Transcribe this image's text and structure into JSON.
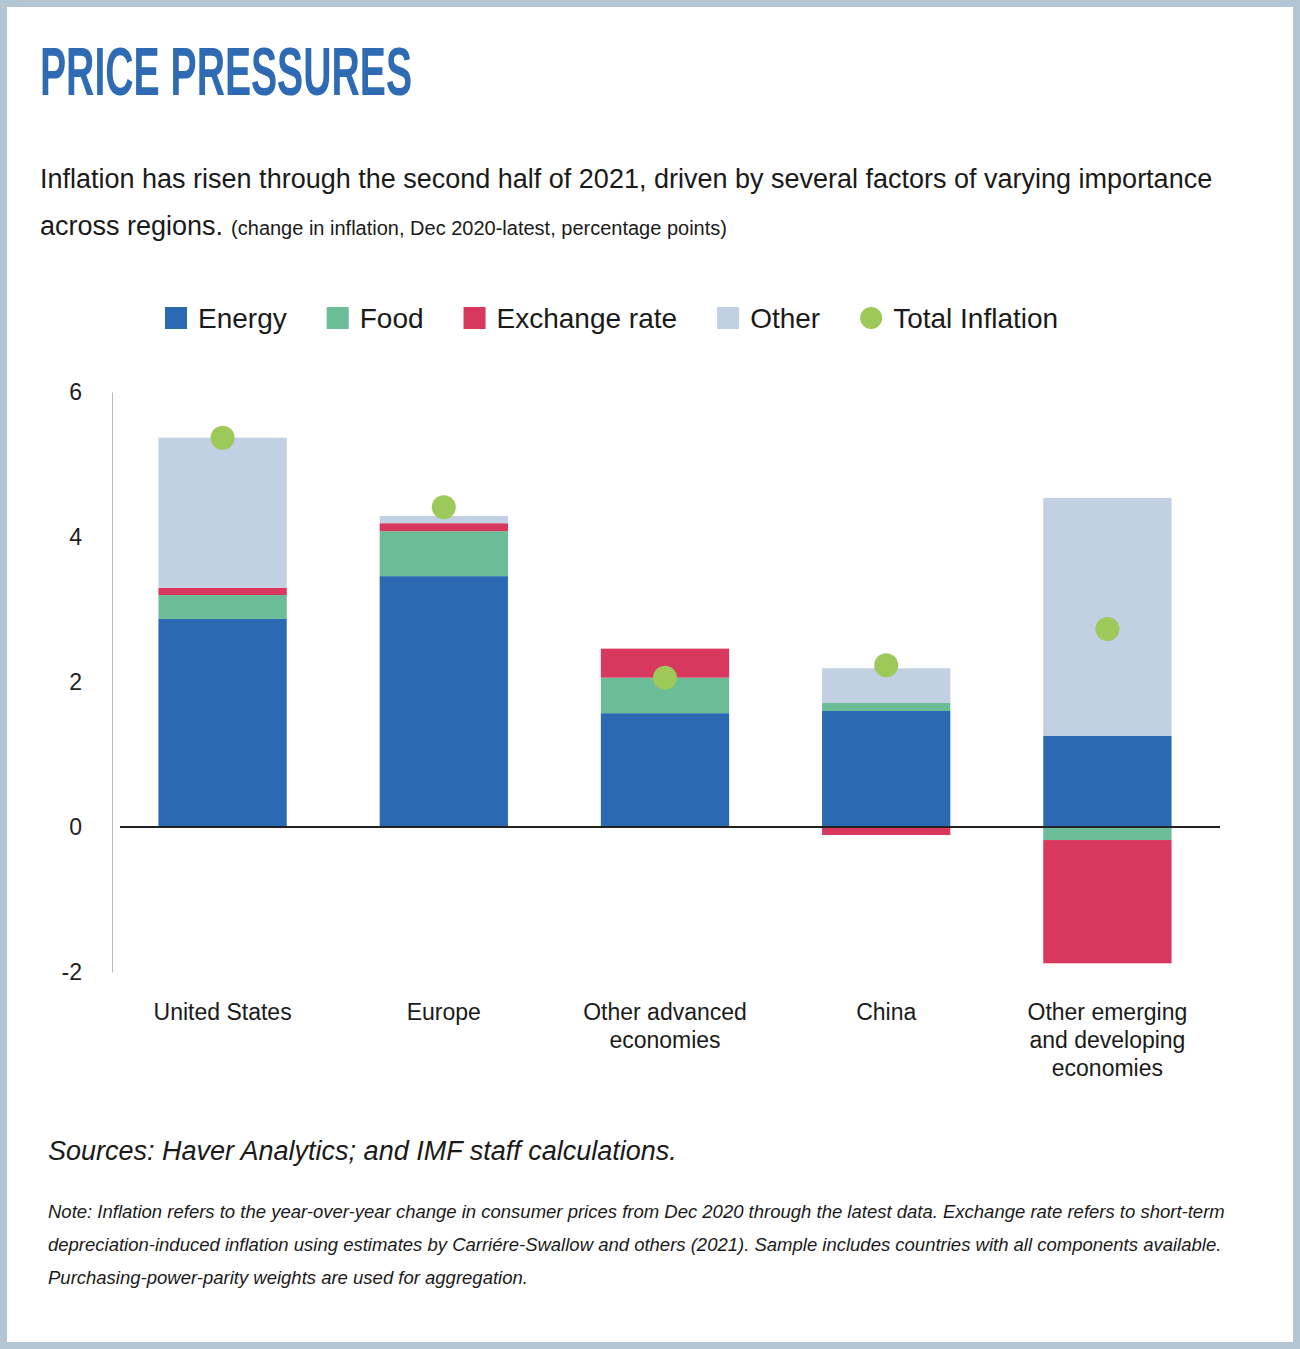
{
  "chart_data": {
    "type": "bar",
    "title": "PRICE PRESSURES",
    "subtitle": "Inflation has risen through the second half of 2021, driven by several factors of varying importance across regions.",
    "ylabel": "(change in inflation, Dec 2020-latest, percentage points)",
    "source": "Sources: Haver Analytics; and IMF staff calculations.",
    "note": "Note: Inflation refers to the year-over-year change in consumer prices from Dec 2020 through the latest data. Exchange rate refers to short-term depreciation-induced inflation using estimates by Carriére-Swallow and others (2021). Sample includes countries with all components available. Purchasing-power-parity weights are used for aggregation.",
    "categories": [
      "United States",
      "Europe",
      "Other advanced economies",
      "China",
      "Other emerging and developing economies"
    ],
    "stacked": true,
    "legend": "top",
    "grid": false,
    "series": [
      {
        "name": "Energy",
        "color": "#2b6ab3",
        "values": [
          2.87,
          3.46,
          1.57,
          1.6,
          1.26
        ]
      },
      {
        "name": "Food",
        "color": "#6abd97",
        "values": [
          0.33,
          0.62,
          0.49,
          0.11,
          -0.18
        ]
      },
      {
        "name": "Exchange rate",
        "color": "#d9385e",
        "values": [
          0.1,
          0.11,
          0.4,
          -0.11,
          -1.7
        ]
      },
      {
        "name": "Other",
        "color": "#c2d0e4",
        "values": [
          2.07,
          0.1,
          0,
          0.48,
          3.28
        ]
      },
      {
        "name": "Total Inflation",
        "type": "scatter",
        "marker": "circle",
        "color": "#9dc85a",
        "values": [
          5.37,
          4.41,
          2.06,
          2.23,
          2.73
        ]
      }
    ],
    "ylim": [
      -2,
      6
    ],
    "yticks": [
      -2,
      0,
      2,
      4,
      6
    ]
  }
}
